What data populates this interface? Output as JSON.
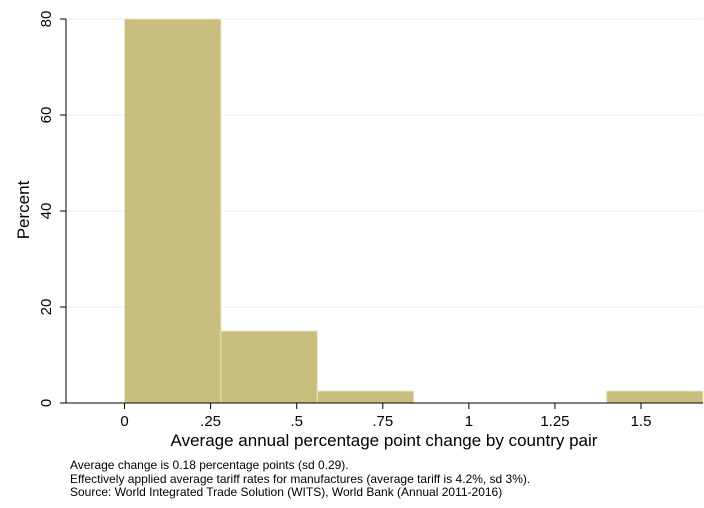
{
  "chart_data": {
    "type": "bar",
    "subtype": "histogram",
    "xlabel": "Average annual percentage point change by country pair",
    "ylabel": "Percent",
    "xlim": [
      -0.17,
      1.68
    ],
    "ylim": [
      0,
      80
    ],
    "x_ticks": [
      {
        "value": 0,
        "label": "0"
      },
      {
        "value": 0.25,
        "label": ".25"
      },
      {
        "value": 0.5,
        "label": ".5"
      },
      {
        "value": 0.75,
        "label": ".75"
      },
      {
        "value": 1,
        "label": "1"
      },
      {
        "value": 1.25,
        "label": "1.25"
      },
      {
        "value": 1.5,
        "label": "1.5"
      }
    ],
    "y_ticks": [
      {
        "value": 0,
        "label": "0"
      },
      {
        "value": 20,
        "label": "20"
      },
      {
        "value": 40,
        "label": "40"
      },
      {
        "value": 60,
        "label": "60"
      },
      {
        "value": 80,
        "label": "80"
      }
    ],
    "grid": true,
    "bar_color": "#c8bf7e",
    "bins": [
      {
        "x0": 0.0,
        "x1": 0.28,
        "value": 80
      },
      {
        "x0": 0.28,
        "x1": 0.56,
        "value": 15
      },
      {
        "x0": 0.56,
        "x1": 0.84,
        "value": 2.5
      },
      {
        "x0": 0.84,
        "x1": 1.12,
        "value": 0
      },
      {
        "x0": 1.12,
        "x1": 1.4,
        "value": 0
      },
      {
        "x0": 1.4,
        "x1": 1.68,
        "value": 2.5
      }
    ]
  },
  "notes": [
    "Average change is 0.18 percentage points (sd 0.29).",
    "Effectively applied average tariff rates for manufactures (average tariff is 4.2%, sd 3%).",
    "Source: World Integrated Trade Solution (WITS), World Bank (Annual 2011-2016)"
  ]
}
